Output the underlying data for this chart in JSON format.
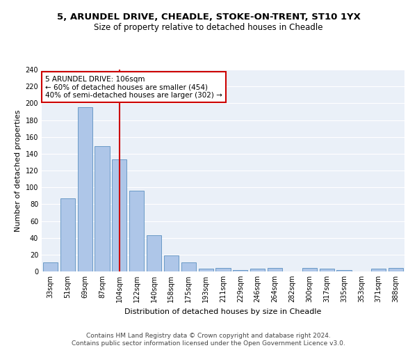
{
  "title1": "5, ARUNDEL DRIVE, CHEADLE, STOKE-ON-TRENT, ST10 1YX",
  "title2": "Size of property relative to detached houses in Cheadle",
  "xlabel": "Distribution of detached houses by size in Cheadle",
  "ylabel": "Number of detached properties",
  "bar_labels": [
    "33sqm",
    "51sqm",
    "69sqm",
    "87sqm",
    "104sqm",
    "122sqm",
    "140sqm",
    "158sqm",
    "175sqm",
    "193sqm",
    "211sqm",
    "229sqm",
    "246sqm",
    "264sqm",
    "282sqm",
    "300sqm",
    "317sqm",
    "335sqm",
    "353sqm",
    "371sqm",
    "388sqm"
  ],
  "bar_values": [
    11,
    87,
    195,
    149,
    133,
    96,
    43,
    19,
    11,
    3,
    4,
    2,
    3,
    4,
    0,
    4,
    3,
    2,
    0,
    3,
    4
  ],
  "bar_color": "#aec6e8",
  "bar_edge_color": "#5a8fc0",
  "vline_x": 4,
  "vline_color": "#cc0000",
  "annotation_text": "5 ARUNDEL DRIVE: 106sqm\n← 60% of detached houses are smaller (454)\n40% of semi-detached houses are larger (302) →",
  "annotation_box_color": "#ffffff",
  "annotation_box_edge": "#cc0000",
  "ylim": [
    0,
    240
  ],
  "yticks": [
    0,
    20,
    40,
    60,
    80,
    100,
    120,
    140,
    160,
    180,
    200,
    220,
    240
  ],
  "background_color": "#eaf0f8",
  "footer_text": "Contains HM Land Registry data © Crown copyright and database right 2024.\nContains public sector information licensed under the Open Government Licence v3.0.",
  "title1_fontsize": 9.5,
  "title2_fontsize": 8.5,
  "xlabel_fontsize": 8,
  "ylabel_fontsize": 8,
  "annotation_fontsize": 7.5,
  "footer_fontsize": 6.5,
  "tick_fontsize": 7
}
